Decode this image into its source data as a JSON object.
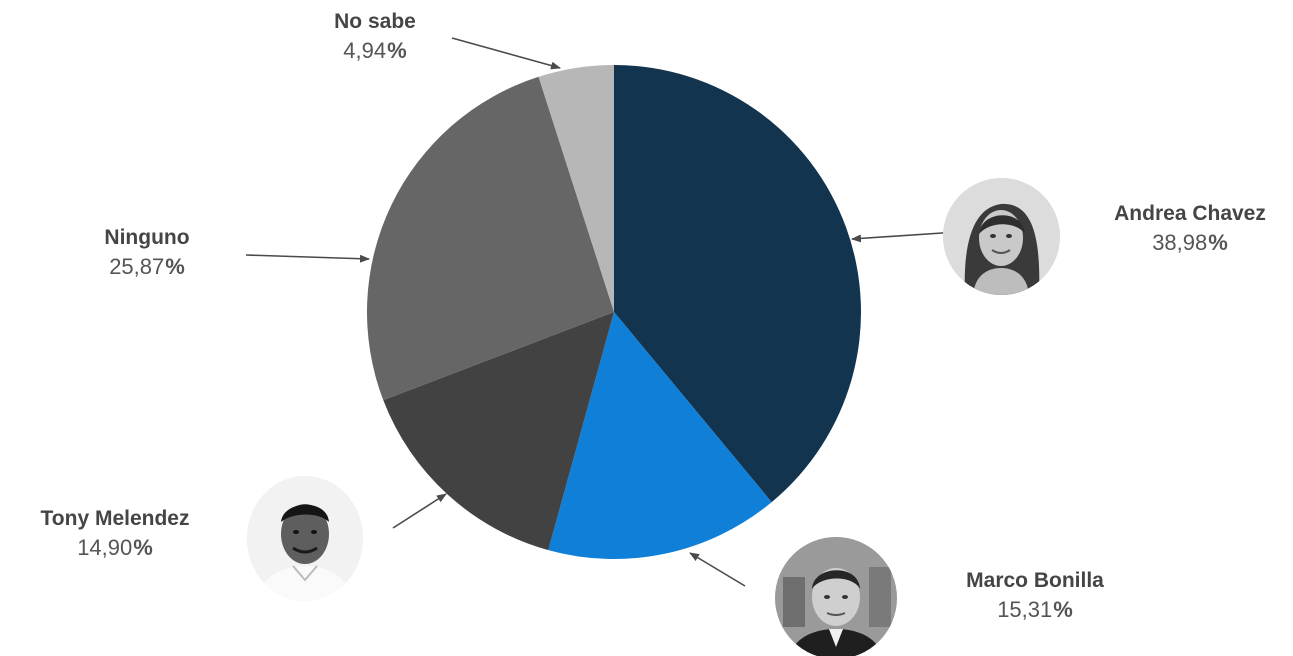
{
  "chart_data": {
    "type": "pie",
    "slices": [
      {
        "label": "Andrea Chavez",
        "value": 38.98,
        "display": "38,98",
        "color": "#12344f",
        "has_photo": true
      },
      {
        "label": "Marco Bonilla",
        "value": 15.31,
        "display": "15,31",
        "color": "#0f7fd8",
        "has_photo": true
      },
      {
        "label": "Tony Melendez",
        "value": 14.9,
        "display": "14,90",
        "color": "#424242",
        "has_photo": true
      },
      {
        "label": "Ninguno",
        "value": 25.87,
        "display": "25,87",
        "color": "#666666",
        "has_photo": false
      },
      {
        "label": "No sabe",
        "value": 4.94,
        "display": "4,94",
        "color": "#b7b7b7",
        "has_photo": false
      }
    ],
    "percent_sign": "%",
    "start": "top",
    "direction": "clockwise",
    "legend": "none",
    "arrow_color": "#4a4a4a"
  }
}
